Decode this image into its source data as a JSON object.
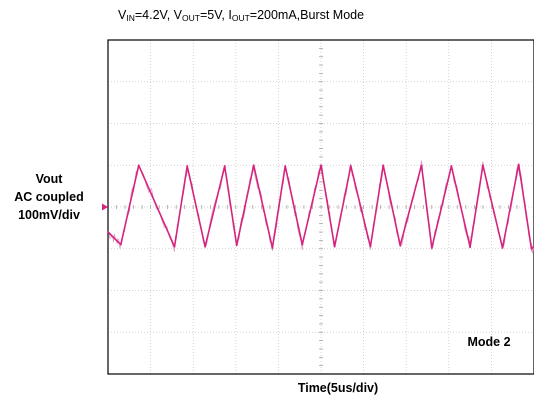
{
  "title": {
    "parts": [
      {
        "text": "V",
        "sub": "IN"
      },
      {
        "text": "=4.2V, V",
        "sub": "OUT"
      },
      {
        "text": "=5V, I",
        "sub": "OUT"
      },
      {
        "text": "=200mA,Burst Mode",
        "sub": ""
      }
    ]
  },
  "ylabel": [
    "Vout",
    "AC coupled",
    "100mV/div"
  ],
  "xlabel": "Time(5us/div)",
  "annotation": "Mode 2",
  "chart_data": {
    "type": "line",
    "title": "VIN=4.2V, VOUT=5V, IOUT=200mA,Burst Mode",
    "xlabel": "Time(5us/div)",
    "ylabel": "Vout AC coupled 100mV/div",
    "xlim": [
      0,
      50
    ],
    "ylim": [
      -400,
      400
    ],
    "grid": true,
    "legend": "none",
    "annotation": "Mode 2",
    "series": [
      {
        "color": "#d6247e",
        "x": [
          0,
          1.5,
          3.6,
          7.8,
          9.3,
          11.4,
          13.7,
          15.1,
          17.1,
          19.3,
          20.8,
          22.8,
          25.0,
          26.6,
          28.5,
          30.8,
          32.3,
          34.3,
          36.8,
          38.0,
          40.3,
          42.5,
          44.0,
          46.3,
          48.2,
          49.7,
          50
        ],
        "y": [
          -60,
          -90,
          100,
          -95,
          98,
          -95,
          98,
          -92,
          100,
          -98,
          98,
          -90,
          100,
          -95,
          98,
          -95,
          100,
          -92,
          100,
          -98,
          98,
          -96,
          100,
          -98,
          102,
          -100,
          -95
        ]
      }
    ]
  }
}
